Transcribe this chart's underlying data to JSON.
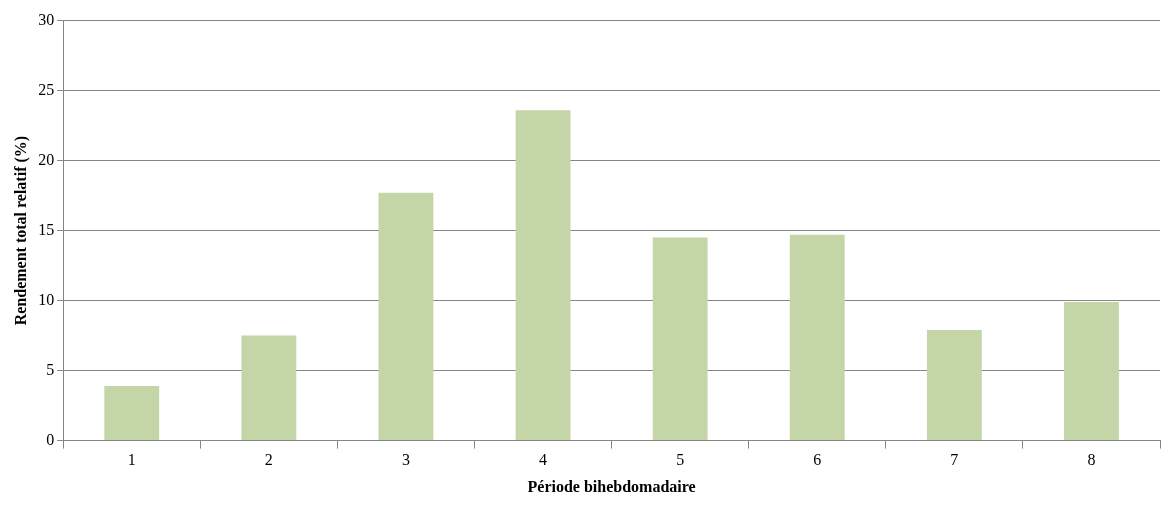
{
  "chart_data": {
    "type": "bar",
    "xlabel": "Période bihebdomadaire",
    "ylabel": "Rendement total relatif (%)",
    "categories": [
      "1",
      "2",
      "3",
      "4",
      "5",
      "6",
      "7",
      "8"
    ],
    "values": [
      3.9,
      7.5,
      17.7,
      23.6,
      14.5,
      14.7,
      7.9,
      9.9
    ],
    "color": "#c4d6a8",
    "ylim": [
      0,
      30
    ],
    "yticks": [
      0,
      5,
      10,
      15,
      20,
      25,
      30
    ],
    "grid": "y",
    "legend": false
  }
}
